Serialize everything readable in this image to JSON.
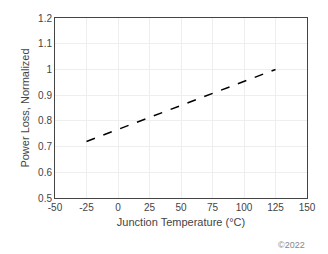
{
  "chart_data": {
    "type": "line",
    "x": [
      -25,
      125
    ],
    "values": [
      0.72,
      1.0
    ],
    "xlabel": "Junction Temperature (°C)",
    "ylabel": "Power Loss, Normalized",
    "xlim": [
      -50,
      150
    ],
    "ylim": [
      0.5,
      1.2
    ],
    "xticks": [
      -50,
      -25,
      0,
      25,
      50,
      75,
      100,
      125,
      150
    ],
    "yticks": [
      0.5,
      0.6,
      0.7,
      0.8,
      0.9,
      1,
      1.1,
      1.2
    ],
    "color": "#000000",
    "line_style": "dashed",
    "grid": true,
    "annotations": [
      "©2022"
    ]
  }
}
